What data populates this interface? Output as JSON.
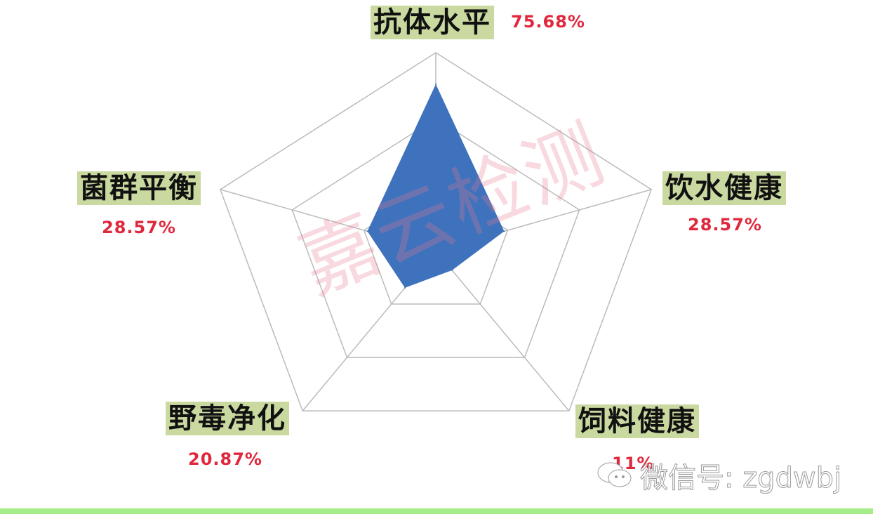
{
  "chart_data": {
    "type": "radar",
    "categories": [
      "抗体水平",
      "饮水健康",
      "饲料健康",
      "野毒净化",
      "菌群平衡"
    ],
    "values": [
      75.68,
      28.57,
      11,
      20.87,
      28.57
    ],
    "value_labels": [
      "75.68%",
      "28.57%",
      "11%",
      "20.87%",
      "28.57%"
    ],
    "rlim": [
      0,
      90
    ],
    "grid_rings": 3,
    "grid": true,
    "fill_color": "#3f72bd",
    "grid_color": "#bbbbbb",
    "label_bg": "#c9d9a0",
    "value_color": "#e0283c"
  },
  "watermark": "嘉云检测",
  "wechat": {
    "text": "微信号: zgdwbj",
    "icon": "wechat-icon"
  }
}
